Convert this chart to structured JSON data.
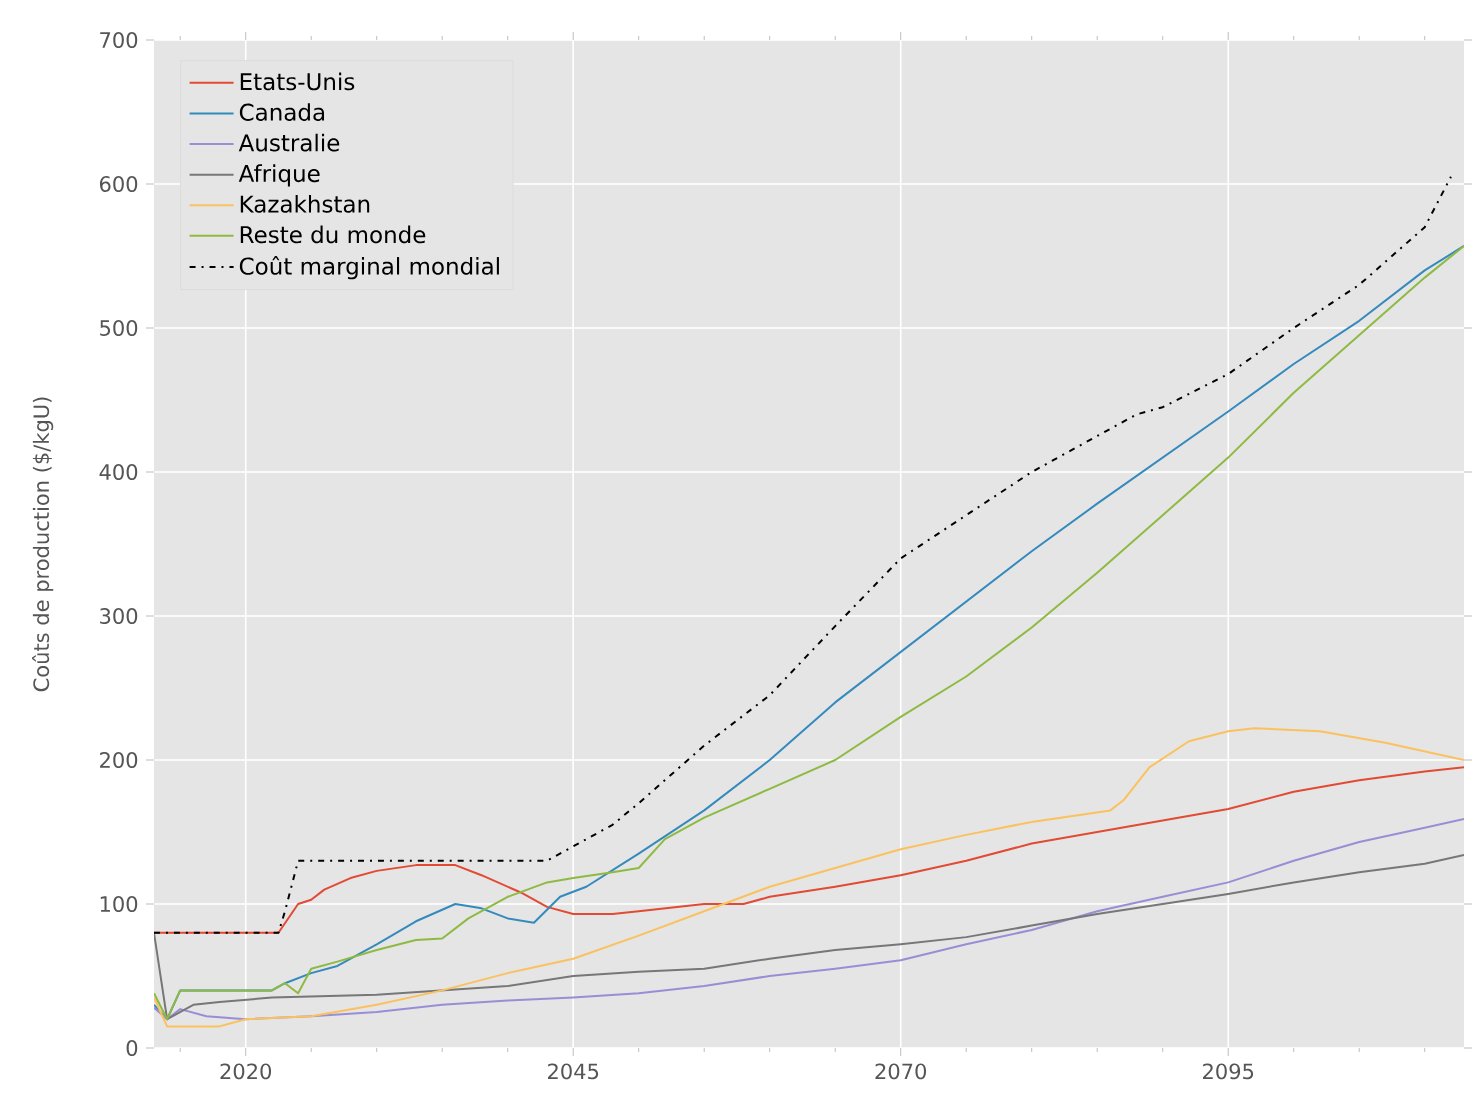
{
  "chart_data": {
    "type": "line",
    "ylabel": "Coûts de production ($/kgU)",
    "xlim": [
      2013,
      2113
    ],
    "ylim": [
      0,
      700
    ],
    "xticks": [
      {
        "value": 2015,
        "label": null
      },
      2020,
      {
        "value": 2025,
        "label": null
      },
      {
        "value": 2030,
        "label": null
      },
      {
        "value": 2035,
        "label": null
      },
      {
        "value": 2040,
        "label": null
      },
      2045,
      {
        "value": 2050,
        "label": null
      },
      {
        "value": 2055,
        "label": null
      },
      {
        "value": 2060,
        "label": null
      },
      {
        "value": 2065,
        "label": null
      },
      2070,
      {
        "value": 2075,
        "label": null
      },
      {
        "value": 2080,
        "label": null
      },
      {
        "value": 2085,
        "label": null
      },
      {
        "value": 2090,
        "label": null
      },
      2095,
      {
        "value": 2100,
        "label": null
      },
      {
        "value": 2105,
        "label": null
      },
      {
        "value": 2110,
        "label": null
      }
    ],
    "yticks": [
      0,
      100,
      200,
      300,
      400,
      500,
      600,
      700
    ],
    "grid": true,
    "legend": "top left",
    "series": [
      {
        "name": "Etats-Unis",
        "color": "#e24a33",
        "x": [
          2013,
          2022.5,
          2024,
          2025,
          2026,
          2028,
          2030,
          2033,
          2036,
          2038,
          2041,
          2043,
          2045,
          2048,
          2050,
          2055,
          2058,
          2060,
          2065,
          2070,
          2075,
          2080,
          2085,
          2090,
          2095,
          2100,
          2105,
          2110,
          2113
        ],
        "values": [
          80,
          80,
          100,
          103,
          110,
          118,
          123,
          127,
          127,
          120,
          108,
          98,
          93,
          93,
          95,
          100,
          100,
          105,
          112,
          120,
          130,
          142,
          150,
          158,
          166,
          178,
          186,
          192,
          195
        ]
      },
      {
        "name": "Canada",
        "color": "#348abd",
        "x": [
          2013,
          2014,
          2015,
          2022,
          2023,
          2025,
          2027,
          2030,
          2033,
          2036,
          2038,
          2040,
          2042,
          2044,
          2046,
          2050,
          2055,
          2060,
          2065,
          2070,
          2075,
          2080,
          2085,
          2090,
          2095,
          2100,
          2105,
          2110,
          2113
        ],
        "values": [
          30,
          20,
          40,
          40,
          45,
          52,
          57,
          72,
          88,
          100,
          97,
          90,
          87,
          105,
          112,
          135,
          165,
          200,
          240,
          275,
          310,
          345,
          378,
          410,
          442,
          475,
          505,
          540,
          557
        ]
      },
      {
        "name": "Australie",
        "color": "#988ed5",
        "x": [
          2013,
          2014,
          2015,
          2017,
          2020,
          2025,
          2030,
          2035,
          2040,
          2045,
          2050,
          2055,
          2060,
          2065,
          2070,
          2075,
          2080,
          2085,
          2090,
          2095,
          2100,
          2105,
          2110,
          2113
        ],
        "values": [
          28,
          20,
          27,
          22,
          20,
          22,
          25,
          30,
          33,
          35,
          38,
          43,
          50,
          55,
          61,
          72,
          82,
          95,
          105,
          115,
          130,
          143,
          153,
          159
        ]
      },
      {
        "name": "Afrique",
        "color": "#777777",
        "x": [
          2013,
          2014,
          2016,
          2018,
          2022,
          2030,
          2035,
          2040,
          2045,
          2050,
          2055,
          2060,
          2065,
          2070,
          2075,
          2080,
          2085,
          2090,
          2095,
          2100,
          2105,
          2110,
          2113
        ],
        "values": [
          80,
          20,
          30,
          32,
          35,
          37,
          40,
          43,
          50,
          53,
          55,
          62,
          68,
          72,
          77,
          85,
          93,
          100,
          107,
          115,
          122,
          128,
          134
        ]
      },
      {
        "name": "Kazakhstan",
        "color": "#fbc15e",
        "x": [
          2013,
          2014,
          2018,
          2020,
          2025,
          2030,
          2035,
          2040,
          2045,
          2050,
          2055,
          2060,
          2065,
          2070,
          2075,
          2080,
          2086,
          2087,
          2089,
          2092,
          2095,
          2097,
          2102,
          2107,
          2113
        ],
        "values": [
          35,
          15,
          15,
          20,
          22,
          30,
          40,
          52,
          62,
          78,
          95,
          112,
          125,
          138,
          148,
          157,
          165,
          172,
          195,
          213,
          220,
          222,
          220,
          212,
          200
        ]
      },
      {
        "name": "Reste du monde",
        "color": "#8eba42",
        "x": [
          2013,
          2014,
          2015,
          2022,
          2023,
          2024,
          2025,
          2027,
          2030,
          2033,
          2035,
          2037,
          2040,
          2043,
          2045,
          2048,
          2050,
          2052,
          2055,
          2060,
          2065,
          2070,
          2075,
          2080,
          2085,
          2090,
          2095,
          2100,
          2105,
          2110,
          2113
        ],
        "values": [
          38,
          20,
          40,
          40,
          45,
          38,
          55,
          60,
          68,
          75,
          76,
          90,
          105,
          115,
          118,
          122,
          125,
          145,
          160,
          180,
          200,
          230,
          258,
          292,
          330,
          370,
          410,
          455,
          495,
          535,
          557
        ]
      },
      {
        "name": "Coût marginal mondial",
        "color": "#000000",
        "line_style": "dashdot",
        "x": [
          2013,
          2022.5,
          2023,
          2024,
          2043,
          2045,
          2048,
          2050,
          2055,
          2060,
          2065,
          2070,
          2075,
          2080,
          2085,
          2088,
          2090,
          2095,
          2100,
          2105,
          2110,
          2112
        ],
        "values": [
          80,
          80,
          95,
          130,
          130,
          140,
          155,
          170,
          210,
          245,
          293,
          340,
          370,
          400,
          425,
          440,
          445,
          468,
          500,
          530,
          570,
          605
        ]
      }
    ]
  }
}
